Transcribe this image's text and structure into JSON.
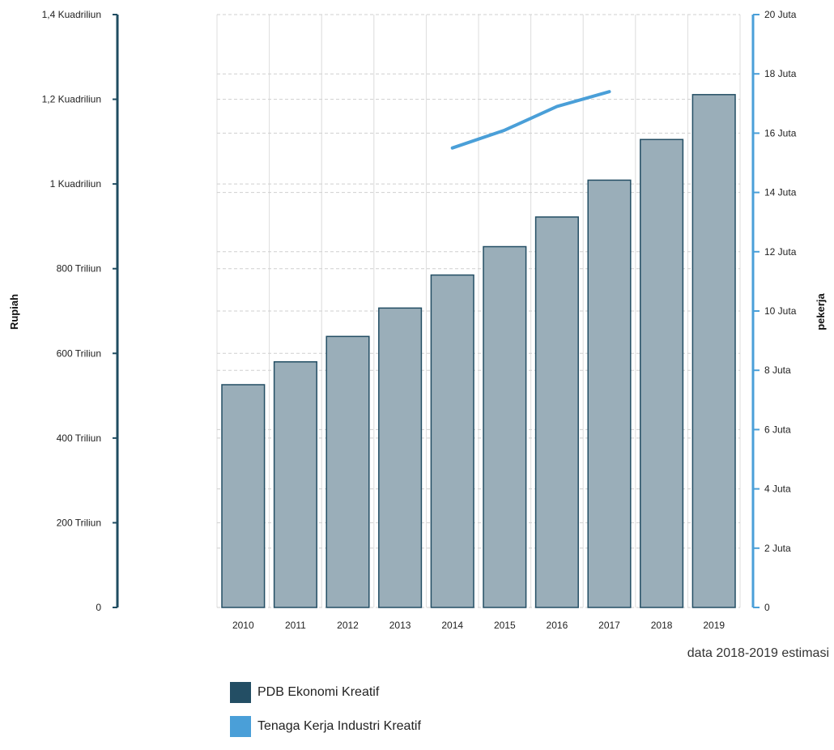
{
  "chart_data": {
    "type": "bar",
    "categories": [
      "2010",
      "2011",
      "2012",
      "2013",
      "2014",
      "2015",
      "2016",
      "2017",
      "2018",
      "2019"
    ],
    "series": [
      {
        "name": "PDB Ekonomi Kreatif",
        "axis": "left",
        "kind": "bar",
        "values": [
          526,
          580,
          640,
          707,
          785,
          852,
          922,
          1009,
          1105,
          1211
        ]
      },
      {
        "name": "Tenaga Kerja Industri Kreatif",
        "axis": "right",
        "kind": "line",
        "values": [
          null,
          null,
          null,
          null,
          15.5,
          16.1,
          16.9,
          17.4,
          null,
          null
        ]
      }
    ],
    "ylabel": "Rupiah",
    "y2label": "pekerja",
    "ylim": [
      0,
      1400
    ],
    "y2lim": [
      0,
      20
    ],
    "yticks": [
      {
        "value": 0,
        "label": "0"
      },
      {
        "value": 200,
        "label": "200 Triliun"
      },
      {
        "value": 400,
        "label": "400 Triliun"
      },
      {
        "value": 600,
        "label": "600 Triliun"
      },
      {
        "value": 800,
        "label": "800 Triliun"
      },
      {
        "value": 1000,
        "label": "1 Kuadriliun"
      },
      {
        "value": 1200,
        "label": "1,2 Kuadriliun"
      },
      {
        "value": 1400,
        "label": "1,4 Kuadriliun"
      }
    ],
    "y2ticks": [
      {
        "value": 0,
        "label": "0"
      },
      {
        "value": 2,
        "label": "2 Juta"
      },
      {
        "value": 4,
        "label": "4 Juta"
      },
      {
        "value": 6,
        "label": "6 Juta"
      },
      {
        "value": 8,
        "label": "8 Juta"
      },
      {
        "value": 10,
        "label": "10 Juta"
      },
      {
        "value": 12,
        "label": "12 Juta"
      },
      {
        "value": 14,
        "label": "14 Juta"
      },
      {
        "value": 16,
        "label": "16 Juta"
      },
      {
        "value": 18,
        "label": "18 Juta"
      },
      {
        "value": 20,
        "label": "20 Juta"
      }
    ],
    "grid": true,
    "legend_position": "bottom-left",
    "annotation": "data 2018-2019 estimasi",
    "colors": {
      "bar_fill": "#9aaeb9",
      "bar_stroke": "#234e64",
      "line": "#4a9fd8",
      "left_axis": "#1f4c61",
      "right_axis": "#4a9fd8",
      "legend_bar": "#234e64",
      "legend_line": "#4a9fd8"
    }
  }
}
